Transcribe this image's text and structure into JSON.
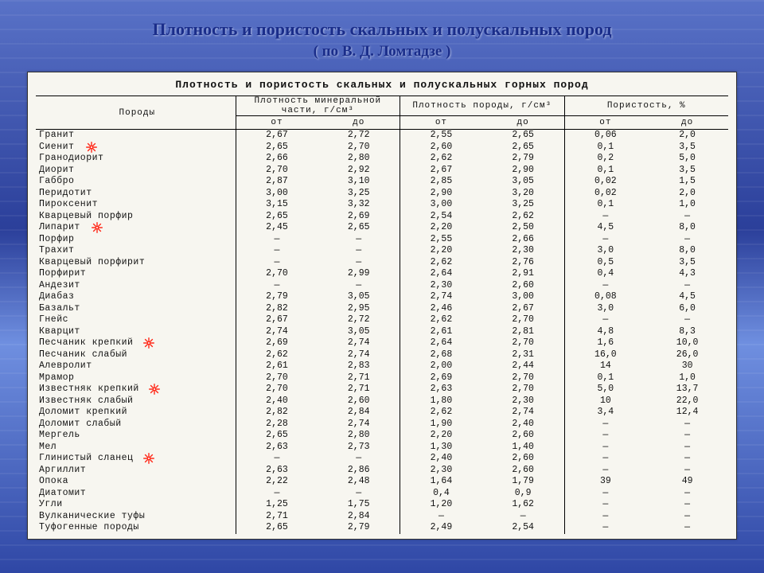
{
  "slide": {
    "title": "Плотность и пористость скальных и полускальных пород",
    "subtitle": "( по В. Д. Ломтадзе )"
  },
  "scan": {
    "caption": "Плотность и пористость скальных и полускальных горных пород",
    "header": {
      "rock": "Породы",
      "g1": "Плотность минеральной части, г/см³",
      "g2": "Плотность породы, г/см³",
      "g3": "Пористость, %",
      "from": "от",
      "to": "до"
    },
    "burst_color_fill": "#ff2a1a",
    "burst_color_glow": "#ffffff",
    "rows": [
      {
        "n": "Гранит",
        "a": "2,67",
        "b": "2,72",
        "c": "2,55",
        "d": "2,65",
        "e": "0,06",
        "f": "2,0"
      },
      {
        "n": "Сиенит",
        "a": "2,65",
        "b": "2,70",
        "c": "2,60",
        "d": "2,65",
        "e": "0,1",
        "f": "3,5",
        "burst": true
      },
      {
        "n": "Гранодиорит",
        "a": "2,66",
        "b": "2,80",
        "c": "2,62",
        "d": "2,79",
        "e": "0,2",
        "f": "5,0"
      },
      {
        "n": "Диорит",
        "a": "2,70",
        "b": "2,92",
        "c": "2,67",
        "d": "2,90",
        "e": "0,1",
        "f": "3,5"
      },
      {
        "n": "Габбро",
        "a": "2,87",
        "b": "3,10",
        "c": "2,85",
        "d": "3,05",
        "e": "0,02",
        "f": "1,5"
      },
      {
        "n": "Перидотит",
        "a": "3,00",
        "b": "3,25",
        "c": "2,90",
        "d": "3,20",
        "e": "0,02",
        "f": "2,0"
      },
      {
        "n": "Пироксенит",
        "a": "3,15",
        "b": "3,32",
        "c": "3,00",
        "d": "3,25",
        "e": "0,1",
        "f": "1,0"
      },
      {
        "n": "Кварцевый порфир",
        "a": "2,65",
        "b": "2,69",
        "c": "2,54",
        "d": "2,62",
        "e": "—",
        "f": "—"
      },
      {
        "n": "Липарит",
        "a": "2,45",
        "b": "2,65",
        "c": "2,20",
        "d": "2,50",
        "e": "4,5",
        "f": "8,0",
        "burst": true
      },
      {
        "n": "Порфир",
        "a": "—",
        "b": "—",
        "c": "2,55",
        "d": "2,66",
        "e": "—",
        "f": "—"
      },
      {
        "n": "Трахит",
        "a": "—",
        "b": "—",
        "c": "2,20",
        "d": "2,30",
        "e": "3,0",
        "f": "8,0"
      },
      {
        "n": "Кварцевый порфирит",
        "a": "—",
        "b": "—",
        "c": "2,62",
        "d": "2,76",
        "e": "0,5",
        "f": "3,5"
      },
      {
        "n": "Порфирит",
        "a": "2,70",
        "b": "2,99",
        "c": "2,64",
        "d": "2,91",
        "e": "0,4",
        "f": "4,3"
      },
      {
        "n": "Андезит",
        "a": "—",
        "b": "—",
        "c": "2,30",
        "d": "2,60",
        "e": "—",
        "f": "—"
      },
      {
        "n": "Диабаз",
        "a": "2,79",
        "b": "3,05",
        "c": "2,74",
        "d": "3,00",
        "e": "0,08",
        "f": "4,5"
      },
      {
        "n": "Базальт",
        "a": "2,82",
        "b": "2,95",
        "c": "2,46",
        "d": "2,67",
        "e": "3,0",
        "f": "6,0"
      },
      {
        "n": "Гнейс",
        "a": "2,67",
        "b": "2,72",
        "c": "2,62",
        "d": "2,70",
        "e": "—",
        "f": "—"
      },
      {
        "n": "Кварцит",
        "a": "2,74",
        "b": "3,05",
        "c": "2,61",
        "d": "2,81",
        "e": "4,8",
        "f": "8,3"
      },
      {
        "n": "Песчаник крепкий",
        "a": "2,69",
        "b": "2,74",
        "c": "2,64",
        "d": "2,70",
        "e": "1,6",
        "f": "10,0",
        "burst": true
      },
      {
        "n": "Песчаник слабый",
        "a": "2,62",
        "b": "2,74",
        "c": "2,68",
        "d": "2,31",
        "e": "16,0",
        "f": "26,0"
      },
      {
        "n": "Алевролит",
        "a": "2,61",
        "b": "2,83",
        "c": "2,00",
        "d": "2,44",
        "e": "14",
        "f": "30"
      },
      {
        "n": "Мрамор",
        "a": "2,70",
        "b": "2,71",
        "c": "2,69",
        "d": "2,70",
        "e": "0,1",
        "f": "1,0"
      },
      {
        "n": "Известняк крепкий",
        "a": "2,70",
        "b": "2,71",
        "c": "2,63",
        "d": "2,70",
        "e": "5,0",
        "f": "13,7",
        "burst": true
      },
      {
        "n": "Известняк слабый",
        "a": "2,40",
        "b": "2,60",
        "c": "1,80",
        "d": "2,30",
        "e": "10",
        "f": "22,0"
      },
      {
        "n": "Доломит крепкий",
        "a": "2,82",
        "b": "2,84",
        "c": "2,62",
        "d": "2,74",
        "e": "3,4",
        "f": "12,4"
      },
      {
        "n": "Доломит слабый",
        "a": "2,28",
        "b": "2,74",
        "c": "1,90",
        "d": "2,40",
        "e": "—",
        "f": "—"
      },
      {
        "n": "Мергель",
        "a": "2,65",
        "b": "2,80",
        "c": "2,20",
        "d": "2,60",
        "e": "—",
        "f": "—"
      },
      {
        "n": "Мел",
        "a": "2,63",
        "b": "2,73",
        "c": "1,30",
        "d": "1,40",
        "e": "—",
        "f": "—"
      },
      {
        "n": "Глинистый сланец",
        "a": "—",
        "b": "—",
        "c": "2,40",
        "d": "2,60",
        "e": "—",
        "f": "—",
        "burst": true
      },
      {
        "n": "Аргиллит",
        "a": "2,63",
        "b": "2,86",
        "c": "2,30",
        "d": "2,60",
        "e": "—",
        "f": "—"
      },
      {
        "n": "Опока",
        "a": "2,22",
        "b": "2,48",
        "c": "1,64",
        "d": "1,79",
        "e": "39",
        "f": "49"
      },
      {
        "n": "Диатомит",
        "a": "—",
        "b": "—",
        "c": "0,4",
        "d": "0,9",
        "e": "—",
        "f": "—"
      },
      {
        "n": "Угли",
        "a": "1,25",
        "b": "1,75",
        "c": "1,20",
        "d": "1,62",
        "e": "—",
        "f": "—"
      },
      {
        "n": "Вулканические туфы",
        "a": "2,71",
        "b": "2,84",
        "c": "—",
        "d": "—",
        "e": "—",
        "f": "—"
      },
      {
        "n": "Туфогенные породы",
        "a": "2,65",
        "b": "2,79",
        "c": "2,49",
        "d": "2,54",
        "e": "—",
        "f": "—"
      }
    ]
  }
}
